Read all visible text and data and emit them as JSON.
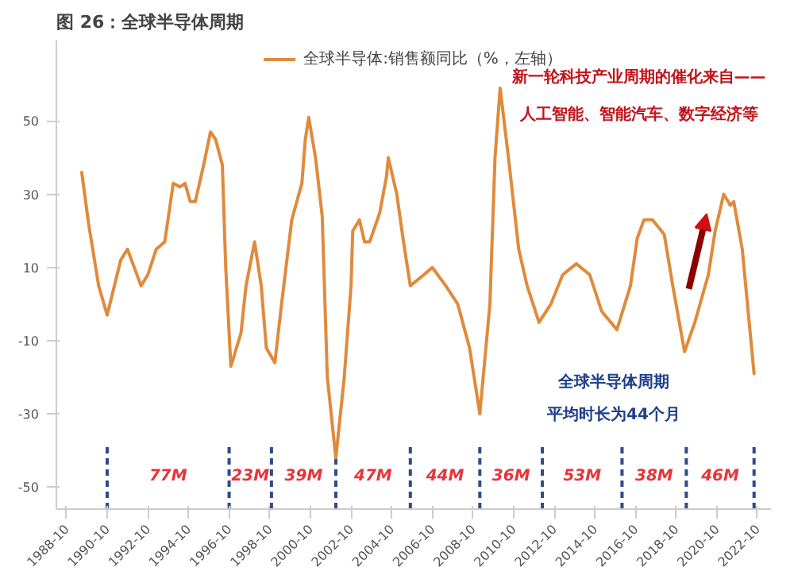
{
  "chart_data": {
    "type": "line",
    "title": "图 26：全球半导体周期",
    "x": [
      "1989-07",
      "1989-11",
      "1990-05",
      "1990-10",
      "1991-06",
      "1991-10",
      "1992-06",
      "1992-10",
      "1993-03",
      "1993-08",
      "1994-01",
      "1994-05",
      "1994-08",
      "1994-11",
      "1995-02",
      "1995-07",
      "1995-11",
      "1996-02",
      "1996-06",
      "1996-08",
      "1996-11",
      "1997-05",
      "1997-08",
      "1998-01",
      "1998-05",
      "1998-08",
      "1999-01",
      "1999-05",
      "1999-11",
      "2000-05",
      "2000-07",
      "2000-09",
      "2001-01",
      "2001-05",
      "2001-08",
      "2002-01",
      "2002-06",
      "2002-10",
      "2002-11",
      "2003-03",
      "2003-06",
      "2003-09",
      "2004-03",
      "2004-07",
      "2004-08",
      "2005-01",
      "2005-05",
      "2005-09",
      "2006-05",
      "2006-10",
      "2007-06",
      "2008-01",
      "2008-08",
      "2009-02",
      "2009-08",
      "2009-11",
      "2010-02",
      "2010-07",
      "2011-01",
      "2011-06",
      "2012-01",
      "2012-08",
      "2013-03",
      "2013-11",
      "2014-07",
      "2015-02",
      "2015-11",
      "2016-07",
      "2016-11",
      "2017-03",
      "2017-08",
      "2018-03",
      "2018-08",
      "2019-03",
      "2019-09",
      "2020-05",
      "2020-09",
      "2021-02",
      "2021-06",
      "2021-08",
      "2022-01",
      "2022-08"
    ],
    "series": [
      {
        "name": "全球半导体:销售额同比（%，左轴）",
        "color": "#e08a3c",
        "values": [
          36,
          22,
          5,
          -3,
          12,
          15,
          5,
          8,
          15,
          17,
          33,
          32,
          33,
          28,
          28,
          38,
          47,
          45,
          38,
          10,
          -17,
          -8,
          5,
          17,
          5,
          -12,
          -16,
          0,
          23,
          33,
          45,
          51,
          40,
          24,
          -20,
          -42,
          -20,
          5,
          20,
          23,
          17,
          17,
          25,
          35,
          40,
          30,
          17,
          5,
          8,
          10,
          5,
          0,
          -12,
          -30,
          0,
          40,
          59,
          40,
          15,
          5,
          -5,
          0,
          8,
          11,
          8,
          -2,
          -7,
          5,
          18,
          23,
          23,
          19,
          5,
          -13,
          -5,
          8,
          20,
          30,
          27,
          28,
          15,
          -19
        ]
      }
    ],
    "xlim": [
      "1988-04",
      "2023-06"
    ],
    "ylim": [
      -56,
      72
    ],
    "xticks": [
      "1988-10",
      "1990-10",
      "1992-10",
      "1994-10",
      "1996-10",
      "1998-10",
      "2000-10",
      "2002-10",
      "2004-10",
      "2006-10",
      "2008-10",
      "2010-10",
      "2012-10",
      "2014-10",
      "2016-10",
      "2018-10",
      "2020-10",
      "2022-10"
    ],
    "yticks": [
      -50,
      -30,
      -10,
      10,
      30,
      50
    ],
    "grid": false,
    "legend": "top",
    "marker": "none",
    "line_style": "solid",
    "ref_lines": [
      {
        "axis": "x",
        "value": "1990-10",
        "color": "#2f4b8c",
        "line_style": "dashed"
      },
      {
        "axis": "x",
        "value": "1996-10",
        "color": "#2f4b8c",
        "line_style": "dashed"
      },
      {
        "axis": "x",
        "value": "1998-11",
        "color": "#2f4b8c",
        "line_style": "dashed"
      },
      {
        "axis": "x",
        "value": "2002-01",
        "color": "#2f4b8c",
        "line_style": "dashed"
      },
      {
        "axis": "x",
        "value": "2005-09",
        "color": "#2f4b8c",
        "line_style": "dashed"
      },
      {
        "axis": "x",
        "value": "2009-02",
        "color": "#2f4b8c",
        "line_style": "dashed"
      },
      {
        "axis": "x",
        "value": "2012-03",
        "color": "#2f4b8c",
        "line_style": "dashed"
      },
      {
        "axis": "x",
        "value": "2016-02",
        "color": "#2f4b8c",
        "line_style": "dashed"
      },
      {
        "axis": "x",
        "value": "2019-04",
        "color": "#2f4b8c",
        "line_style": "dashed"
      },
      {
        "axis": "x",
        "value": "2022-08",
        "color": "#2f4b8c",
        "line_style": "dashed"
      }
    ],
    "annotations": [
      "77M",
      "23M",
      "39M",
      "47M",
      "44M",
      "36M",
      "53M",
      "38M",
      "46M",
      "新一轮科技产业周期的催化来自——",
      "人工智能、智能汽车、数字经济等",
      "全球半导体周期",
      "平均时长为44个月"
    ]
  }
}
